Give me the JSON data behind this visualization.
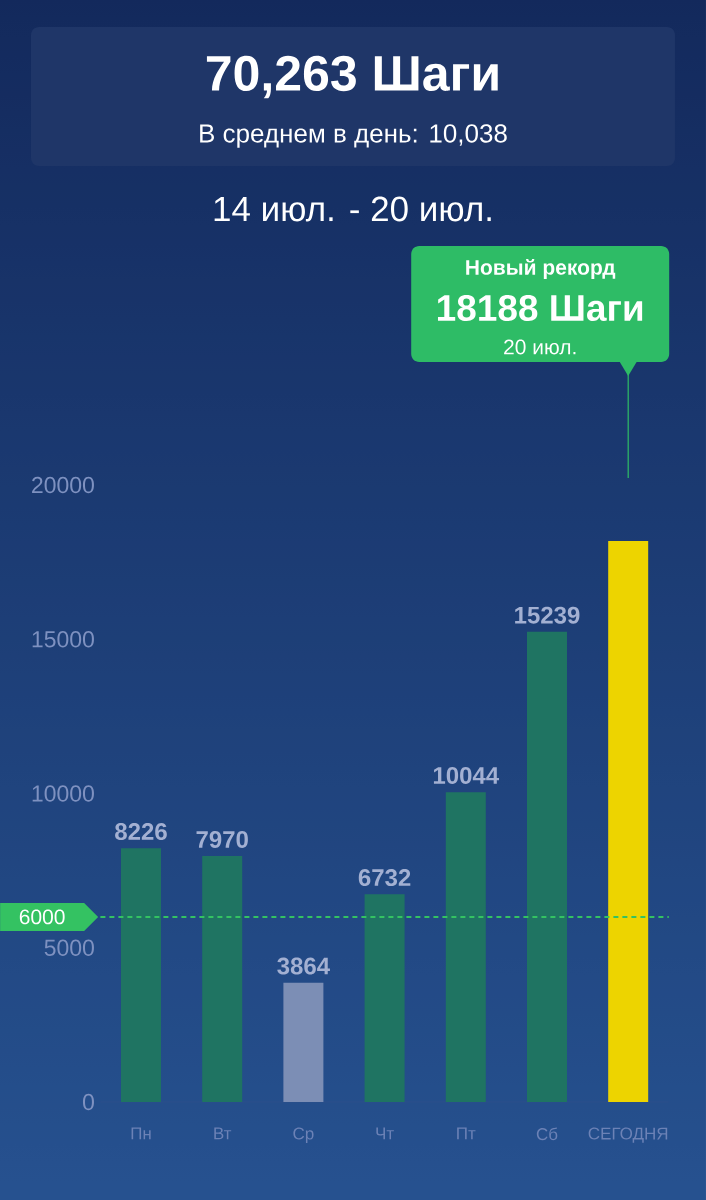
{
  "chart_data": {
    "type": "bar",
    "title": "70,263 Шаги",
    "subtitle": "В среднем в день: 10,038",
    "categories": [
      "Пн",
      "Вт",
      "Ср",
      "Чт",
      "Пт",
      "Сб",
      "СЕГОДНЯ"
    ],
    "values": [
      8226,
      7970,
      3864,
      6732,
      10044,
      15239,
      18188
    ],
    "colors": [
      "#1f7462",
      "#1f7462",
      "#7c8eb5",
      "#1f7462",
      "#1f7462",
      "#1f7462",
      "#edd400"
    ],
    "value_labels": [
      "8226",
      "7970",
      "3864",
      "6732",
      "10044",
      "15239",
      null
    ],
    "ylim": [
      0,
      20000
    ],
    "yticks": [
      0,
      5000,
      10000,
      15000,
      20000
    ],
    "ref_lines": [
      {
        "axis": "y",
        "value": 6000,
        "label": "6000",
        "color": "#34c262",
        "line_style": "dashed"
      }
    ],
    "annotations": [
      "14 июл. - 20 июл.",
      "Новый рекорд",
      "18188 Шаги",
      "20 июл."
    ]
  }
}
